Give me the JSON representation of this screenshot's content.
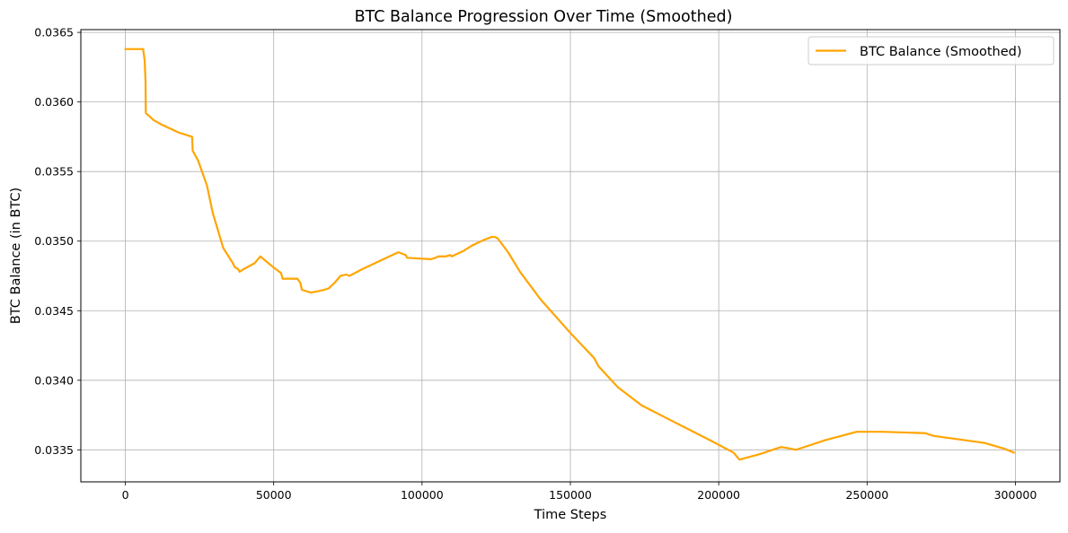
{
  "chart_data": {
    "type": "line",
    "title": "BTC Balance Progression Over Time (Smoothed)",
    "xlabel": "Time Steps",
    "ylabel": "BTC Balance (in BTC)",
    "xlim": [
      -15000,
      315000
    ],
    "ylim": [
      0.03327,
      0.03652
    ],
    "xticks": [
      0,
      50000,
      100000,
      150000,
      200000,
      250000,
      300000
    ],
    "xtick_labels": [
      "0",
      "50000",
      "100000",
      "150000",
      "200000",
      "250000",
      "300000"
    ],
    "yticks": [
      0.0335,
      0.034,
      0.0345,
      0.035,
      0.0355,
      0.036,
      0.0365
    ],
    "ytick_labels": [
      "0.0335",
      "0.0340",
      "0.0345",
      "0.0350",
      "0.0355",
      "0.0360",
      "0.0365"
    ],
    "grid": true,
    "legend_position": "top-right",
    "color": "#FFA500",
    "series": [
      {
        "name": "BTC Balance (Smoothed)",
        "points": [
          [
            0,
            0.03638
          ],
          [
            6000,
            0.03638
          ],
          [
            6500,
            0.0363
          ],
          [
            6800,
            0.03615
          ],
          [
            6900,
            0.03592
          ],
          [
            8000,
            0.0359
          ],
          [
            9500,
            0.03587
          ],
          [
            12000,
            0.03584
          ],
          [
            15000,
            0.03581
          ],
          [
            18000,
            0.03578
          ],
          [
            22500,
            0.03575
          ],
          [
            22700,
            0.03565
          ],
          [
            24500,
            0.03558
          ],
          [
            27500,
            0.0354
          ],
          [
            29500,
            0.0352
          ],
          [
            33000,
            0.03495
          ],
          [
            36000,
            0.03485
          ],
          [
            37000,
            0.03481
          ],
          [
            38000,
            0.0348
          ],
          [
            38500,
            0.03478
          ],
          [
            40000,
            0.0348
          ],
          [
            43500,
            0.03484
          ],
          [
            45500,
            0.03489
          ],
          [
            50000,
            0.03481
          ],
          [
            52500,
            0.03477
          ],
          [
            53000,
            0.03473
          ],
          [
            58000,
            0.03473
          ],
          [
            59000,
            0.0347
          ],
          [
            59500,
            0.03465
          ],
          [
            62500,
            0.03463
          ],
          [
            65000,
            0.03464
          ],
          [
            67000,
            0.03465
          ],
          [
            68500,
            0.03466
          ],
          [
            70500,
            0.0347
          ],
          [
            72500,
            0.03475
          ],
          [
            74500,
            0.03476
          ],
          [
            75500,
            0.03475
          ],
          [
            80000,
            0.0348
          ],
          [
            86000,
            0.03486
          ],
          [
            89000,
            0.03489
          ],
          [
            92000,
            0.03492
          ],
          [
            94500,
            0.0349
          ],
          [
            95000,
            0.03488
          ],
          [
            103000,
            0.03487
          ],
          [
            104500,
            0.03488
          ],
          [
            105500,
            0.03489
          ],
          [
            108000,
            0.03489
          ],
          [
            109500,
            0.0349
          ],
          [
            110000,
            0.03489
          ],
          [
            114000,
            0.03493
          ],
          [
            117000,
            0.03497
          ],
          [
            121000,
            0.03501
          ],
          [
            123500,
            0.03503
          ],
          [
            124500,
            0.03503
          ],
          [
            125500,
            0.03502
          ],
          [
            129000,
            0.03492
          ],
          [
            133000,
            0.03478
          ],
          [
            140000,
            0.03458
          ],
          [
            150000,
            0.03434
          ],
          [
            158000,
            0.03416
          ],
          [
            159500,
            0.0341
          ],
          [
            166000,
            0.03395
          ],
          [
            174000,
            0.03382
          ],
          [
            185000,
            0.0337
          ],
          [
            197000,
            0.03357
          ],
          [
            205000,
            0.03348
          ],
          [
            207000,
            0.03343
          ],
          [
            214000,
            0.03347
          ],
          [
            221000,
            0.03352
          ],
          [
            224000,
            0.03351
          ],
          [
            226000,
            0.0335
          ],
          [
            236000,
            0.03357
          ],
          [
            246500,
            0.03363
          ],
          [
            255000,
            0.03363
          ],
          [
            269500,
            0.03362
          ],
          [
            272500,
            0.0336
          ],
          [
            289500,
            0.03355
          ],
          [
            296000,
            0.03351
          ],
          [
            299500,
            0.03348
          ]
        ]
      }
    ]
  }
}
